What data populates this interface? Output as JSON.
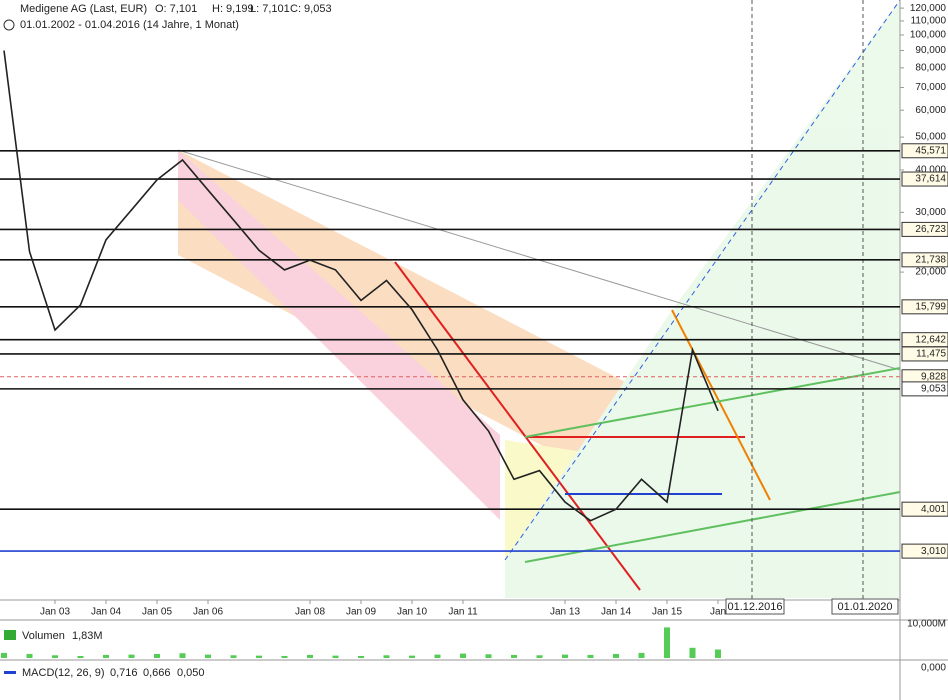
{
  "chart_data": {
    "type": "line",
    "title": "Medigene AG (Last, EUR)",
    "ohlc": [
      "O: 7,101",
      "H: 9,199",
      "L: 7,101",
      "C: 9,053"
    ],
    "range": "01.01.2002 - 01.04.2016 (14 Jahre, 1 Monat)",
    "log_scale": true,
    "color": "#222222",
    "categories": [
      null,
      null,
      "Jan 03",
      null,
      "Jan 04",
      null,
      "Jan 05",
      null,
      "Jan 06",
      null,
      null,
      null,
      "Jan 08",
      null,
      "Jan 09",
      null,
      "Jan 10",
      null,
      "Jan 11",
      null,
      null,
      null,
      "Jan 13",
      null,
      "Jan 14",
      null,
      "Jan 15",
      null,
      "Jan"
    ],
    "values": [
      90,
      23,
      13.5,
      16,
      24.9,
      30.5,
      37.4,
      42.8,
      34.9,
      28.5,
      23.2,
      20.3,
      21.7,
      20.3,
      16.5,
      18.9,
      15.5,
      11.8,
      8.4,
      6.8,
      4.9,
      5.2,
      4.2,
      3.7,
      4.0,
      4.9,
      4.2,
      11.8,
      7.8
    ],
    "ylim": [
      2.16,
      126.8
    ],
    "yticks": [
      {
        "value": 120,
        "label": "120,000"
      },
      {
        "value": 110,
        "label": "110,000"
      },
      {
        "value": 100,
        "label": "100,000"
      },
      {
        "value": 90,
        "label": "90,000"
      },
      {
        "value": 80,
        "label": "80,000"
      },
      {
        "value": 70,
        "label": "70,000"
      },
      {
        "value": 60,
        "label": "60,000"
      },
      {
        "value": 50,
        "label": "50,000"
      },
      {
        "value": 40,
        "label": "40,000"
      },
      {
        "value": 30,
        "label": "30,000"
      },
      {
        "value": 20,
        "label": "20,000"
      }
    ],
    "levels": [
      {
        "value": 45.571,
        "label": "45,571"
      },
      {
        "value": 37.614,
        "label": "37,614"
      },
      {
        "value": 26.723,
        "label": "26,723"
      },
      {
        "value": 21.738,
        "label": "21,738"
      },
      {
        "value": 15.799,
        "label": "15,799"
      },
      {
        "value": 12.642,
        "label": "12,642"
      },
      {
        "value": 11.475,
        "label": "11,475"
      },
      {
        "value": 9.828,
        "label": "9,828"
      },
      {
        "value": 9.053,
        "label": "9,053"
      },
      {
        "value": 4.001,
        "label": "4,001"
      },
      {
        "value": 3.01,
        "label": "3,010"
      }
    ],
    "markers": [
      "01.12.2016",
      "01.01.2020"
    ],
    "volume": {
      "name": "Volumen",
      "last": "1,83M",
      "color": "#55cc55",
      "values": [
        1.5,
        1.2,
        0.8,
        0.6,
        0.9,
        1,
        1.2,
        1.4,
        1,
        0.8,
        0.7,
        0.6,
        0.9,
        0.7,
        0.6,
        0.8,
        0.7,
        1,
        1.3,
        1.1,
        0.9,
        0.8,
        1,
        0.9,
        1.2,
        1.5,
        9,
        3,
        2.5
      ],
      "ylim": [
        0,
        10
      ],
      "yticks": [
        {
          "value": 10,
          "label": "10,000M"
        }
      ]
    },
    "macd": {
      "name": "MACD(12, 26, 9)",
      "values": [
        "0,716",
        "0,666",
        "0,050"
      ],
      "yticks": [
        {
          "value": 0,
          "label": "0,000"
        }
      ]
    }
  }
}
